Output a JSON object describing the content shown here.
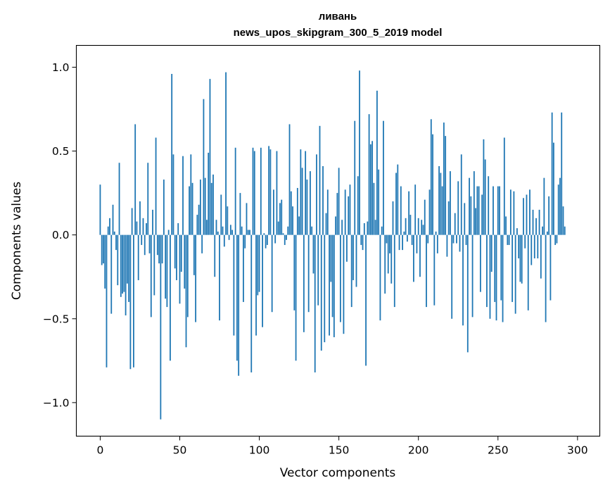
{
  "chart_data": {
    "type": "bar",
    "title": "ливань",
    "subtitle": "news_upos_skipgram_300_5_2019 model",
    "xlabel": "Vector components",
    "ylabel": "Components values",
    "xlim": [
      -15,
      314
    ],
    "ylim": [
      -1.2,
      1.13
    ],
    "xticks": [
      0,
      50,
      100,
      150,
      200,
      250,
      300
    ],
    "xtick_labels": [
      "0",
      "50",
      "100",
      "150",
      "200",
      "250",
      "300"
    ],
    "yticks": [
      -1.0,
      -0.5,
      0.0,
      0.5,
      1.0
    ],
    "ytick_labels": [
      "−1.0",
      "−0.5",
      "0.0",
      "0.5",
      "1.0"
    ],
    "grid": false,
    "bar_color": "#1f77b4",
    "x_start": 0,
    "values": [
      0.3,
      -0.18,
      -0.17,
      -0.32,
      -0.79,
      0.05,
      0.1,
      -0.47,
      0.18,
      0.02,
      -0.09,
      -0.3,
      0.43,
      -0.37,
      -0.35,
      -0.34,
      -0.48,
      -0.29,
      -0.4,
      -0.8,
      0.16,
      -0.79,
      0.66,
      0.08,
      -0.27,
      0.2,
      -0.06,
      0.1,
      -0.12,
      0.07,
      0.43,
      -0.11,
      -0.49,
      0.15,
      -0.36,
      0.58,
      -0.12,
      -0.17,
      -1.1,
      -0.17,
      0.33,
      -0.38,
      -0.43,
      0.03,
      -0.75,
      0.96,
      0.48,
      -0.2,
      -0.27,
      0.07,
      -0.41,
      -0.22,
      0.47,
      -0.32,
      -0.67,
      -0.49,
      0.29,
      0.48,
      0.31,
      -0.24,
      -0.52,
      0.12,
      0.18,
      0.33,
      -0.11,
      0.81,
      0.34,
      0.09,
      0.49,
      0.93,
      0.31,
      0.36,
      -0.25,
      0.09,
      0.02,
      -0.51,
      0.24,
      0.05,
      -0.07,
      0.97,
      0.17,
      -0.03,
      0.06,
      0.03,
      -0.6,
      0.52,
      -0.75,
      -0.84,
      0.25,
      0.05,
      -0.4,
      -0.08,
      0.19,
      0.03,
      0.03,
      -0.82,
      0.52,
      0.5,
      -0.6,
      -0.36,
      -0.34,
      0.52,
      -0.55,
      0.01,
      -0.08,
      -0.06,
      0.53,
      0.51,
      -0.46,
      0.27,
      -0.05,
      0.5,
      0.08,
      0.19,
      0.21,
      0.01,
      -0.06,
      -0.03,
      0.05,
      0.66,
      0.26,
      0.17,
      -0.45,
      -0.75,
      0.28,
      0.11,
      0.51,
      0.4,
      -0.58,
      0.5,
      0.33,
      -0.46,
      0.38,
      0.05,
      -0.23,
      -0.82,
      0.48,
      -0.42,
      0.65,
      -0.69,
      0.41,
      -0.64,
      0.13,
      0.27,
      -0.6,
      -0.28,
      -0.49,
      -0.61,
      0.11,
      0.25,
      0.4,
      -0.52,
      0.09,
      -0.59,
      0.27,
      -0.16,
      0.23,
      0.3,
      -0.43,
      -0.27,
      0.68,
      -0.31,
      0.35,
      0.98,
      -0.06,
      -0.09,
      0.07,
      -0.78,
      0.08,
      0.72,
      0.54,
      0.56,
      0.31,
      0.09,
      0.86,
      0.39,
      -0.51,
      0.05,
      0.68,
      -0.35,
      -0.05,
      -0.23,
      -0.11,
      -0.29,
      0.2,
      -0.43,
      0.37,
      0.42,
      -0.09,
      0.29,
      -0.09,
      0.02,
      0.1,
      -0.04,
      0.26,
      0.12,
      -0.06,
      -0.28,
      0.3,
      -0.11,
      0.1,
      -0.25,
      0.09,
      0.06,
      0.21,
      -0.43,
      -0.05,
      0.27,
      0.69,
      0.6,
      -0.42,
      0.02,
      -0.11,
      0.41,
      0.37,
      0.29,
      0.67,
      0.59,
      -0.13,
      0.2,
      0.38,
      -0.5,
      -0.05,
      0.13,
      -0.05,
      0.32,
      -0.1,
      0.48,
      -0.54,
      0.19,
      -0.06,
      -0.7,
      0.34,
      0.23,
      -0.49,
      0.38,
      0.16,
      0.29,
      0.29,
      -0.34,
      0.24,
      0.57,
      0.45,
      -0.43,
      0.35,
      -0.5,
      -0.22,
      0.29,
      -0.4,
      -0.51,
      0.29,
      0.29,
      -0.39,
      -0.52,
      0.58,
      0.11,
      -0.06,
      -0.06,
      0.27,
      -0.4,
      0.26,
      -0.47,
      0.04,
      -0.14,
      -0.28,
      -0.29,
      0.22,
      -0.08,
      0.24,
      -0.45,
      0.27,
      -0.18,
      0.15,
      -0.14,
      0.1,
      -0.14,
      0.15,
      -0.26,
      0.05,
      0.34,
      -0.52,
      0.02,
      0.23,
      -0.39,
      0.73,
      0.55,
      -0.06,
      -0.05,
      0.3,
      0.34,
      0.73,
      0.17,
      0.05
    ]
  }
}
